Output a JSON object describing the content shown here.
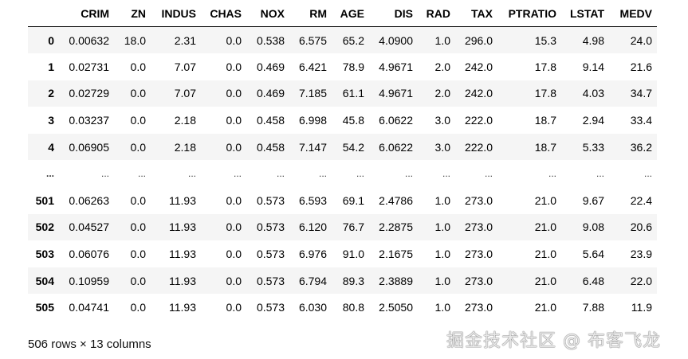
{
  "table": {
    "columns": [
      "CRIM",
      "ZN",
      "INDUS",
      "CHAS",
      "NOX",
      "RM",
      "AGE",
      "DIS",
      "RAD",
      "TAX",
      "PTRATIO",
      "LSTAT",
      "MEDV"
    ],
    "rows": [
      {
        "index": "0",
        "values": [
          "0.00632",
          "18.0",
          "2.31",
          "0.0",
          "0.538",
          "6.575",
          "65.2",
          "4.0900",
          "1.0",
          "296.0",
          "15.3",
          "4.98",
          "24.0"
        ]
      },
      {
        "index": "1",
        "values": [
          "0.02731",
          "0.0",
          "7.07",
          "0.0",
          "0.469",
          "6.421",
          "78.9",
          "4.9671",
          "2.0",
          "242.0",
          "17.8",
          "9.14",
          "21.6"
        ]
      },
      {
        "index": "2",
        "values": [
          "0.02729",
          "0.0",
          "7.07",
          "0.0",
          "0.469",
          "7.185",
          "61.1",
          "4.9671",
          "2.0",
          "242.0",
          "17.8",
          "4.03",
          "34.7"
        ]
      },
      {
        "index": "3",
        "values": [
          "0.03237",
          "0.0",
          "2.18",
          "0.0",
          "0.458",
          "6.998",
          "45.8",
          "6.0622",
          "3.0",
          "222.0",
          "18.7",
          "2.94",
          "33.4"
        ]
      },
      {
        "index": "4",
        "values": [
          "0.06905",
          "0.0",
          "2.18",
          "0.0",
          "0.458",
          "7.147",
          "54.2",
          "6.0622",
          "3.0",
          "222.0",
          "18.7",
          "5.33",
          "36.2"
        ]
      },
      {
        "index": "...",
        "values": [
          "...",
          "...",
          "...",
          "...",
          "...",
          "...",
          "...",
          "...",
          "...",
          "...",
          "...",
          "...",
          "..."
        ]
      },
      {
        "index": "501",
        "values": [
          "0.06263",
          "0.0",
          "11.93",
          "0.0",
          "0.573",
          "6.593",
          "69.1",
          "2.4786",
          "1.0",
          "273.0",
          "21.0",
          "9.67",
          "22.4"
        ]
      },
      {
        "index": "502",
        "values": [
          "0.04527",
          "0.0",
          "11.93",
          "0.0",
          "0.573",
          "6.120",
          "76.7",
          "2.2875",
          "1.0",
          "273.0",
          "21.0",
          "9.08",
          "20.6"
        ]
      },
      {
        "index": "503",
        "values": [
          "0.06076",
          "0.0",
          "11.93",
          "0.0",
          "0.573",
          "6.976",
          "91.0",
          "2.1675",
          "1.0",
          "273.0",
          "21.0",
          "5.64",
          "23.9"
        ]
      },
      {
        "index": "504",
        "values": [
          "0.10959",
          "0.0",
          "11.93",
          "0.0",
          "0.573",
          "6.794",
          "89.3",
          "2.3889",
          "1.0",
          "273.0",
          "21.0",
          "6.48",
          "22.0"
        ]
      },
      {
        "index": "505",
        "values": [
          "0.04741",
          "0.0",
          "11.93",
          "0.0",
          "0.573",
          "6.030",
          "80.8",
          "2.5050",
          "1.0",
          "273.0",
          "21.0",
          "7.88",
          "11.9"
        ]
      }
    ]
  },
  "footer": {
    "shape_text": "506 rows × 13 columns"
  },
  "watermark": "掘金技术社区 @ 布客飞龙",
  "colors": {
    "stripe": "#f5f5f5",
    "header_rule": "#000000"
  }
}
